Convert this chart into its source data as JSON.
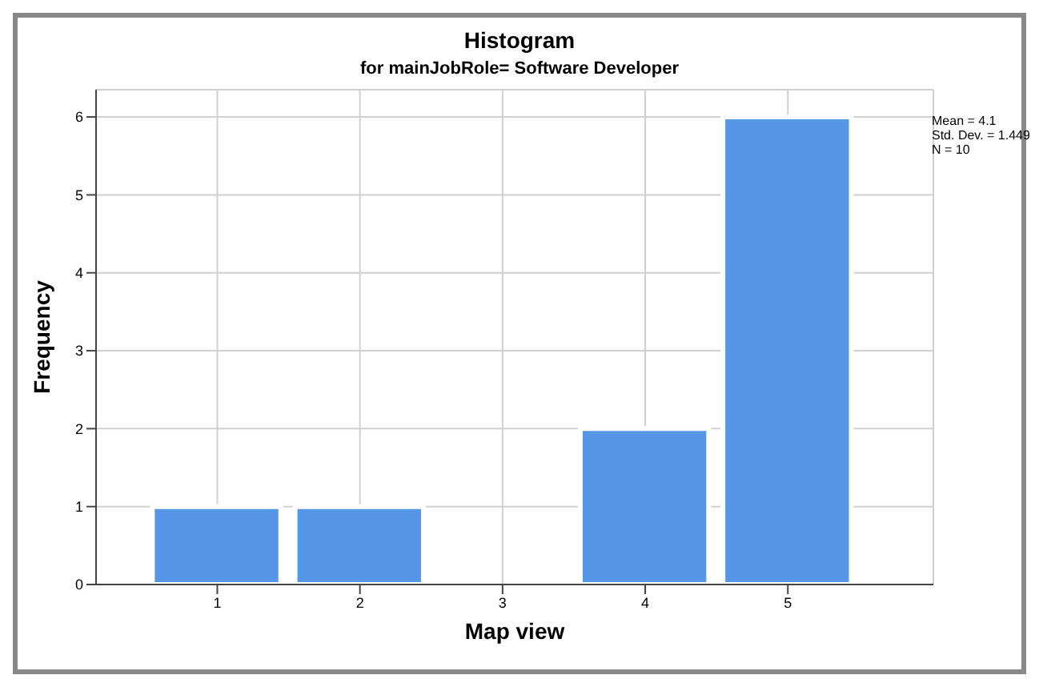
{
  "chart_data": {
    "type": "histogram",
    "title": "Histogram",
    "subtitle": "for mainJobRole= Software Developer",
    "xlabel": "Map view",
    "ylabel": "Frequency",
    "bins": [
      0.5,
      1.5,
      2.5,
      3.5,
      4.5,
      5.5
    ],
    "values": [
      1,
      1,
      0,
      2,
      6
    ],
    "color": "#5596e6",
    "xlim": [
      0.15,
      6.02
    ],
    "xticks": [
      1,
      2,
      3,
      4,
      5
    ],
    "ylim": [
      0,
      6.35
    ],
    "yticks": [
      0,
      1,
      2,
      3,
      4,
      5,
      6
    ],
    "grid": true,
    "annotations": [
      "Mean = 4.1\nStd. Dev. = 1.449\nN = 10"
    ]
  }
}
